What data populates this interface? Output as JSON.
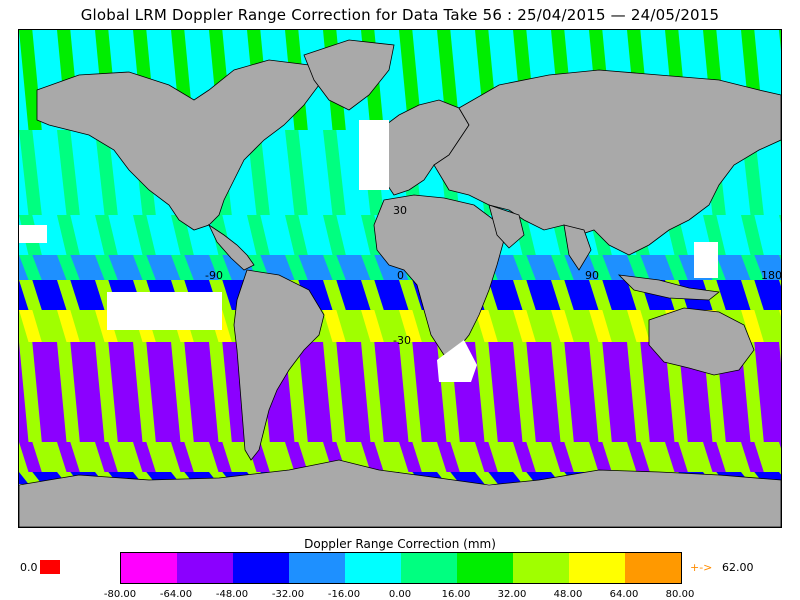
{
  "title": "Global LRM Doppler Range Correction for Data Take 56 : 25/04/2015 — 24/05/2015",
  "map": {
    "lat_labels": [
      "30",
      "-30"
    ],
    "lon_labels": [
      "-90",
      "0",
      "90",
      "180"
    ],
    "land_color": "#a9a9a9",
    "no_data_color": "#ffffff"
  },
  "colorbar": {
    "title": "Doppler Range Correction (mm)",
    "ticks": [
      "-80.00",
      "-64.00",
      "-48.00",
      "-32.00",
      "-16.00",
      "0.00",
      "16.00",
      "32.00",
      "48.00",
      "64.00",
      "80.00"
    ],
    "colors": [
      "#ff00ff",
      "#8b00ff",
      "#0000ff",
      "#1e90ff",
      "#00ffff",
      "#00ff80",
      "#00ee00",
      "#a0ff00",
      "#ffff00",
      "#ff9900"
    ],
    "under_value": "0.0",
    "under_color": "#ff0000",
    "over_symbol": "+->",
    "over_value": "62.00",
    "over_color": "#ff8c00"
  }
}
